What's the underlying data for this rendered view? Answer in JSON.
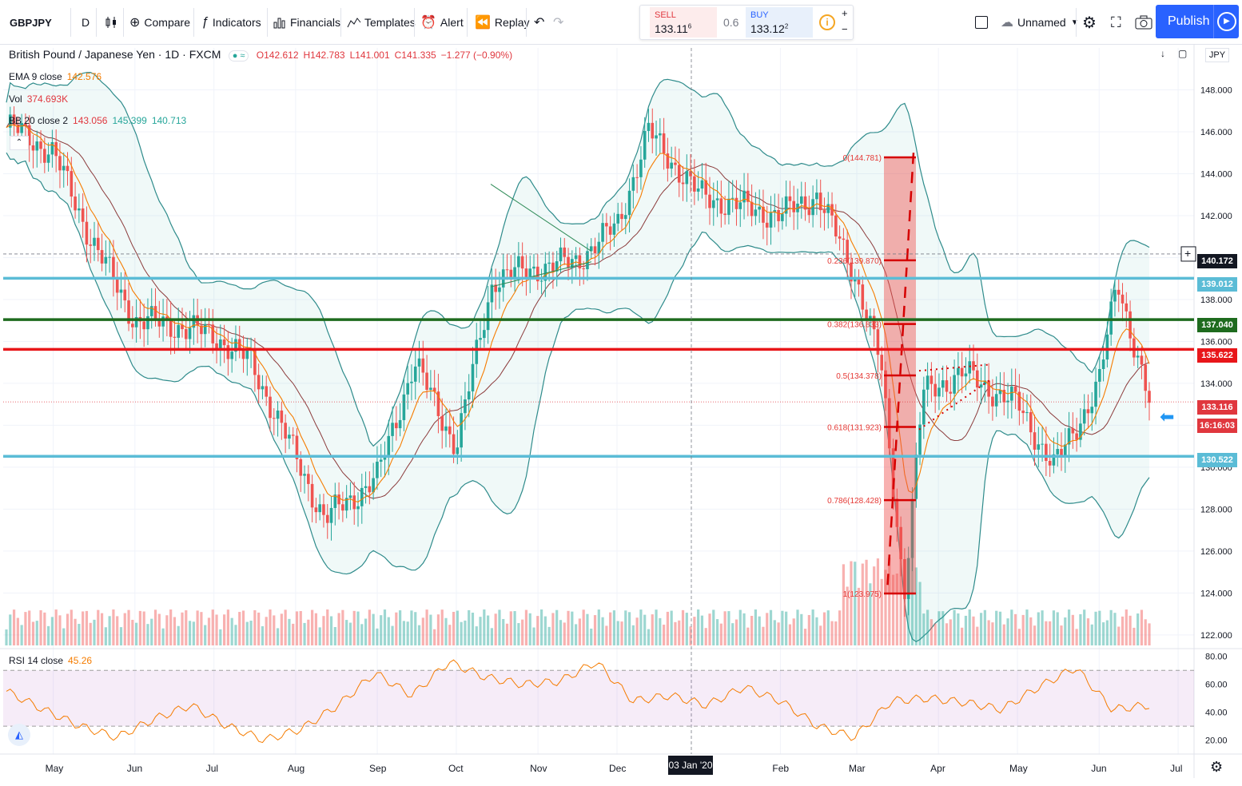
{
  "toolbar": {
    "symbol": "GBPJPY",
    "interval": "D",
    "compare": "Compare",
    "indicators": "Indicators",
    "financials": "Financials",
    "templates": "Templates",
    "alert": "Alert",
    "replay": "Replay",
    "undo_icon": "undo-icon",
    "redo_icon": "redo-icon",
    "layout_name": "Unnamed",
    "publish": "Publish"
  },
  "trade_panel": {
    "sell_label": "SELL",
    "sell_price": "133.11",
    "sell_price_sup": "6",
    "spread": "0.6",
    "buy_label": "BUY",
    "buy_price": "133.12",
    "buy_price_sup": "2",
    "plus": "+",
    "minus": "−"
  },
  "legend": {
    "title": "British Pound / Japanese Yen · 1D · FXCM",
    "open": "O142.612",
    "high": "H142.783",
    "low": "L141.001",
    "close": "C141.335",
    "change": "−1.277 (−0.90%)",
    "ema_label": "EMA 9 close",
    "ema_value": "142.576",
    "vol_label": "Vol",
    "vol_value": "374.693K",
    "bb_label": "BB 20 close 2",
    "bb_basis": "143.056",
    "bb_upper": "145.399",
    "bb_lower": "140.713",
    "rsi_label": "RSI 14 close",
    "rsi_value": "45.26"
  },
  "price_tags": [
    {
      "label": "140.172",
      "color": "#131722"
    },
    {
      "label": "139.012",
      "color": "#5bbcd6"
    },
    {
      "label": "137.040",
      "color": "#1e6b1e"
    },
    {
      "label": "135.622",
      "color": "#e8161a"
    },
    {
      "label": "133.116",
      "color": "#e0373e"
    },
    {
      "label": "16:16:03",
      "color": "#e0373e"
    },
    {
      "label": "130.522",
      "color": "#5bbcd6"
    }
  ],
  "axis": {
    "currency": "JPY",
    "price_ticks": [
      "148.000",
      "146.000",
      "144.000",
      "142.000",
      "140.000",
      "138.000",
      "136.000",
      "134.000",
      "132.000",
      "130.000",
      "128.000",
      "126.000",
      "124.000",
      "122.000"
    ],
    "rsi_ticks": [
      "80.00",
      "60.00",
      "40.00",
      "20.00"
    ],
    "months": [
      "May",
      "Jun",
      "Jul",
      "Aug",
      "Sep",
      "Oct",
      "Nov",
      "Dec",
      "Feb",
      "Mar",
      "Apr",
      "May",
      "Jun",
      "Jul"
    ],
    "crosshair_date": "03 Jan '20"
  },
  "fib_levels": [
    {
      "label": "0(144.781)"
    },
    {
      "label": "0.236(139.870)"
    },
    {
      "label": "0.382(136.833)"
    },
    {
      "label": "0.5(134.378)"
    },
    {
      "label": "0.618(131.923)"
    },
    {
      "label": "0.786(128.428)"
    },
    {
      "label": "1(123.975)"
    }
  ],
  "chart_data": {
    "type": "candlestick",
    "symbol": "GBPJPY",
    "timeframe": "1D",
    "ylim": [
      121.5,
      150.0
    ],
    "horizontal_lines": [
      {
        "price": 139.012,
        "color": "#5bbcd6"
      },
      {
        "price": 137.04,
        "color": "#1e6b1e"
      },
      {
        "price": 135.622,
        "color": "#e8161a"
      },
      {
        "price": 130.522,
        "color": "#5bbcd6"
      }
    ],
    "close_series": [
      {
        "date": "2019-04-15",
        "close": 146.2
      },
      {
        "date": "2019-05-01",
        "close": 145.0
      },
      {
        "date": "2019-05-15",
        "close": 141.0
      },
      {
        "date": "2019-06-01",
        "close": 137.0
      },
      {
        "date": "2019-06-15",
        "close": 136.8
      },
      {
        "date": "2019-07-01",
        "close": 136.3
      },
      {
        "date": "2019-07-15",
        "close": 135.0
      },
      {
        "date": "2019-08-01",
        "close": 130.5
      },
      {
        "date": "2019-08-12",
        "close": 127.5
      },
      {
        "date": "2019-09-01",
        "close": 129.5
      },
      {
        "date": "2019-09-15",
        "close": 135.0
      },
      {
        "date": "2019-10-01",
        "close": 131.0
      },
      {
        "date": "2019-10-15",
        "close": 139.0
      },
      {
        "date": "2019-11-01",
        "close": 139.5
      },
      {
        "date": "2019-11-15",
        "close": 139.8
      },
      {
        "date": "2019-12-01",
        "close": 141.5
      },
      {
        "date": "2019-12-13",
        "close": 146.0
      },
      {
        "date": "2020-01-01",
        "close": 143.0
      },
      {
        "date": "2020-01-15",
        "close": 142.5
      },
      {
        "date": "2020-02-01",
        "close": 142.0
      },
      {
        "date": "2020-02-15",
        "close": 143.0
      },
      {
        "date": "2020-03-01",
        "close": 139.0
      },
      {
        "date": "2020-03-10",
        "close": 135.0
      },
      {
        "date": "2020-03-19",
        "close": 124.0
      },
      {
        "date": "2020-03-26",
        "close": 133.5
      },
      {
        "date": "2020-04-10",
        "close": 134.5
      },
      {
        "date": "2020-05-01",
        "close": 133.0
      },
      {
        "date": "2020-05-15",
        "close": 130.0
      },
      {
        "date": "2020-06-01",
        "close": 134.0
      },
      {
        "date": "2020-06-08",
        "close": 139.0
      },
      {
        "date": "2020-06-20",
        "close": 133.0
      },
      {
        "date": "2020-07-01",
        "close": 133.1
      }
    ],
    "rsi_series": [
      55,
      42,
      30,
      22,
      35,
      45,
      30,
      20,
      28,
      45,
      68,
      52,
      76,
      65,
      60,
      62,
      76,
      48,
      52,
      45,
      58,
      48,
      30,
      22,
      48,
      50,
      47,
      42,
      58,
      72,
      42,
      45
    ]
  }
}
